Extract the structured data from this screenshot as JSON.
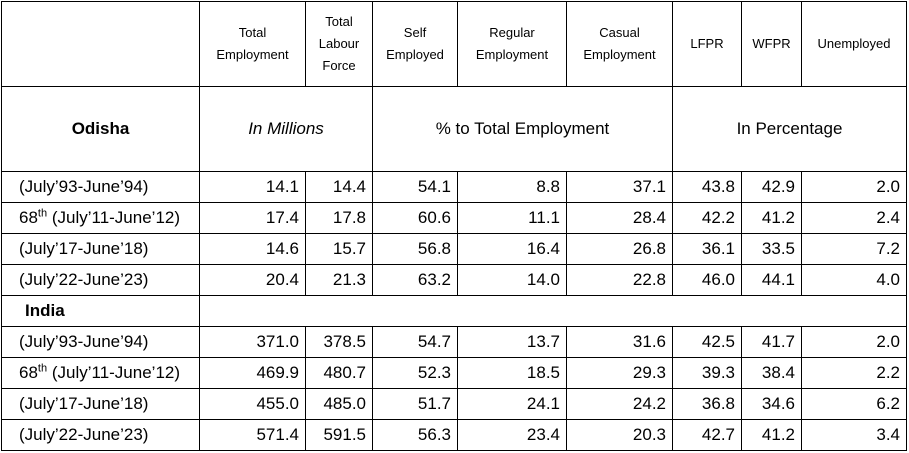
{
  "header": {
    "col1": "Total Employment",
    "col2": "Total Labour Force",
    "col3": "Self Employed",
    "col4": "Regular Employment",
    "col5": "Casual Employment",
    "col6": "LFPR",
    "col7": "WFPR",
    "col8": "Unemployed"
  },
  "subheader": {
    "region": "Odisha",
    "millions": "In Millions",
    "pct_total": "% to Total Employment",
    "in_pct": "In Percentage"
  },
  "odisha_rows": [
    {
      "period": "(July’93-June’94)",
      "v": [
        "14.1",
        "14.4",
        "54.1",
        "8.8",
        "37.1",
        "43.8",
        "42.9",
        "2.0"
      ]
    },
    {
      "round": "68",
      "round_sup": "th",
      "period": " (July’11-June’12)",
      "v": [
        "17.4",
        "17.8",
        "60.6",
        "11.1",
        "28.4",
        "42.2",
        "41.2",
        "2.4"
      ]
    },
    {
      "period": "(July’17-June’18)",
      "v": [
        "14.6",
        "15.7",
        "56.8",
        "16.4",
        "26.8",
        "36.1",
        "33.5",
        "7.2"
      ]
    },
    {
      "period": "(July’22-June’23)",
      "v": [
        "20.4",
        "21.3",
        "63.2",
        "14.0",
        "22.8",
        "46.0",
        "44.1",
        "4.0"
      ]
    }
  ],
  "india_label": "India",
  "india_rows": [
    {
      "period": "(July’93-June’94)",
      "v": [
        "371.0",
        "378.5",
        "54.7",
        "13.7",
        "31.6",
        "42.5",
        "41.7",
        "2.0"
      ]
    },
    {
      "round": "68",
      "round_sup": "th",
      "period": " (July’11-June’12)",
      "v": [
        "469.9",
        "480.7",
        "52.3",
        "18.5",
        "29.3",
        "39.3",
        "38.4",
        "2.2"
      ]
    },
    {
      "period": "(July’17-June’18)",
      "v": [
        "455.0",
        "485.0",
        "51.7",
        "24.1",
        "24.2",
        "36.8",
        "34.6",
        "6.2"
      ]
    },
    {
      "period": "(July’22-June’23)",
      "v": [
        "571.4",
        "591.5",
        "56.3",
        "23.4",
        "20.3",
        "42.7",
        "41.2",
        "3.4"
      ]
    }
  ]
}
